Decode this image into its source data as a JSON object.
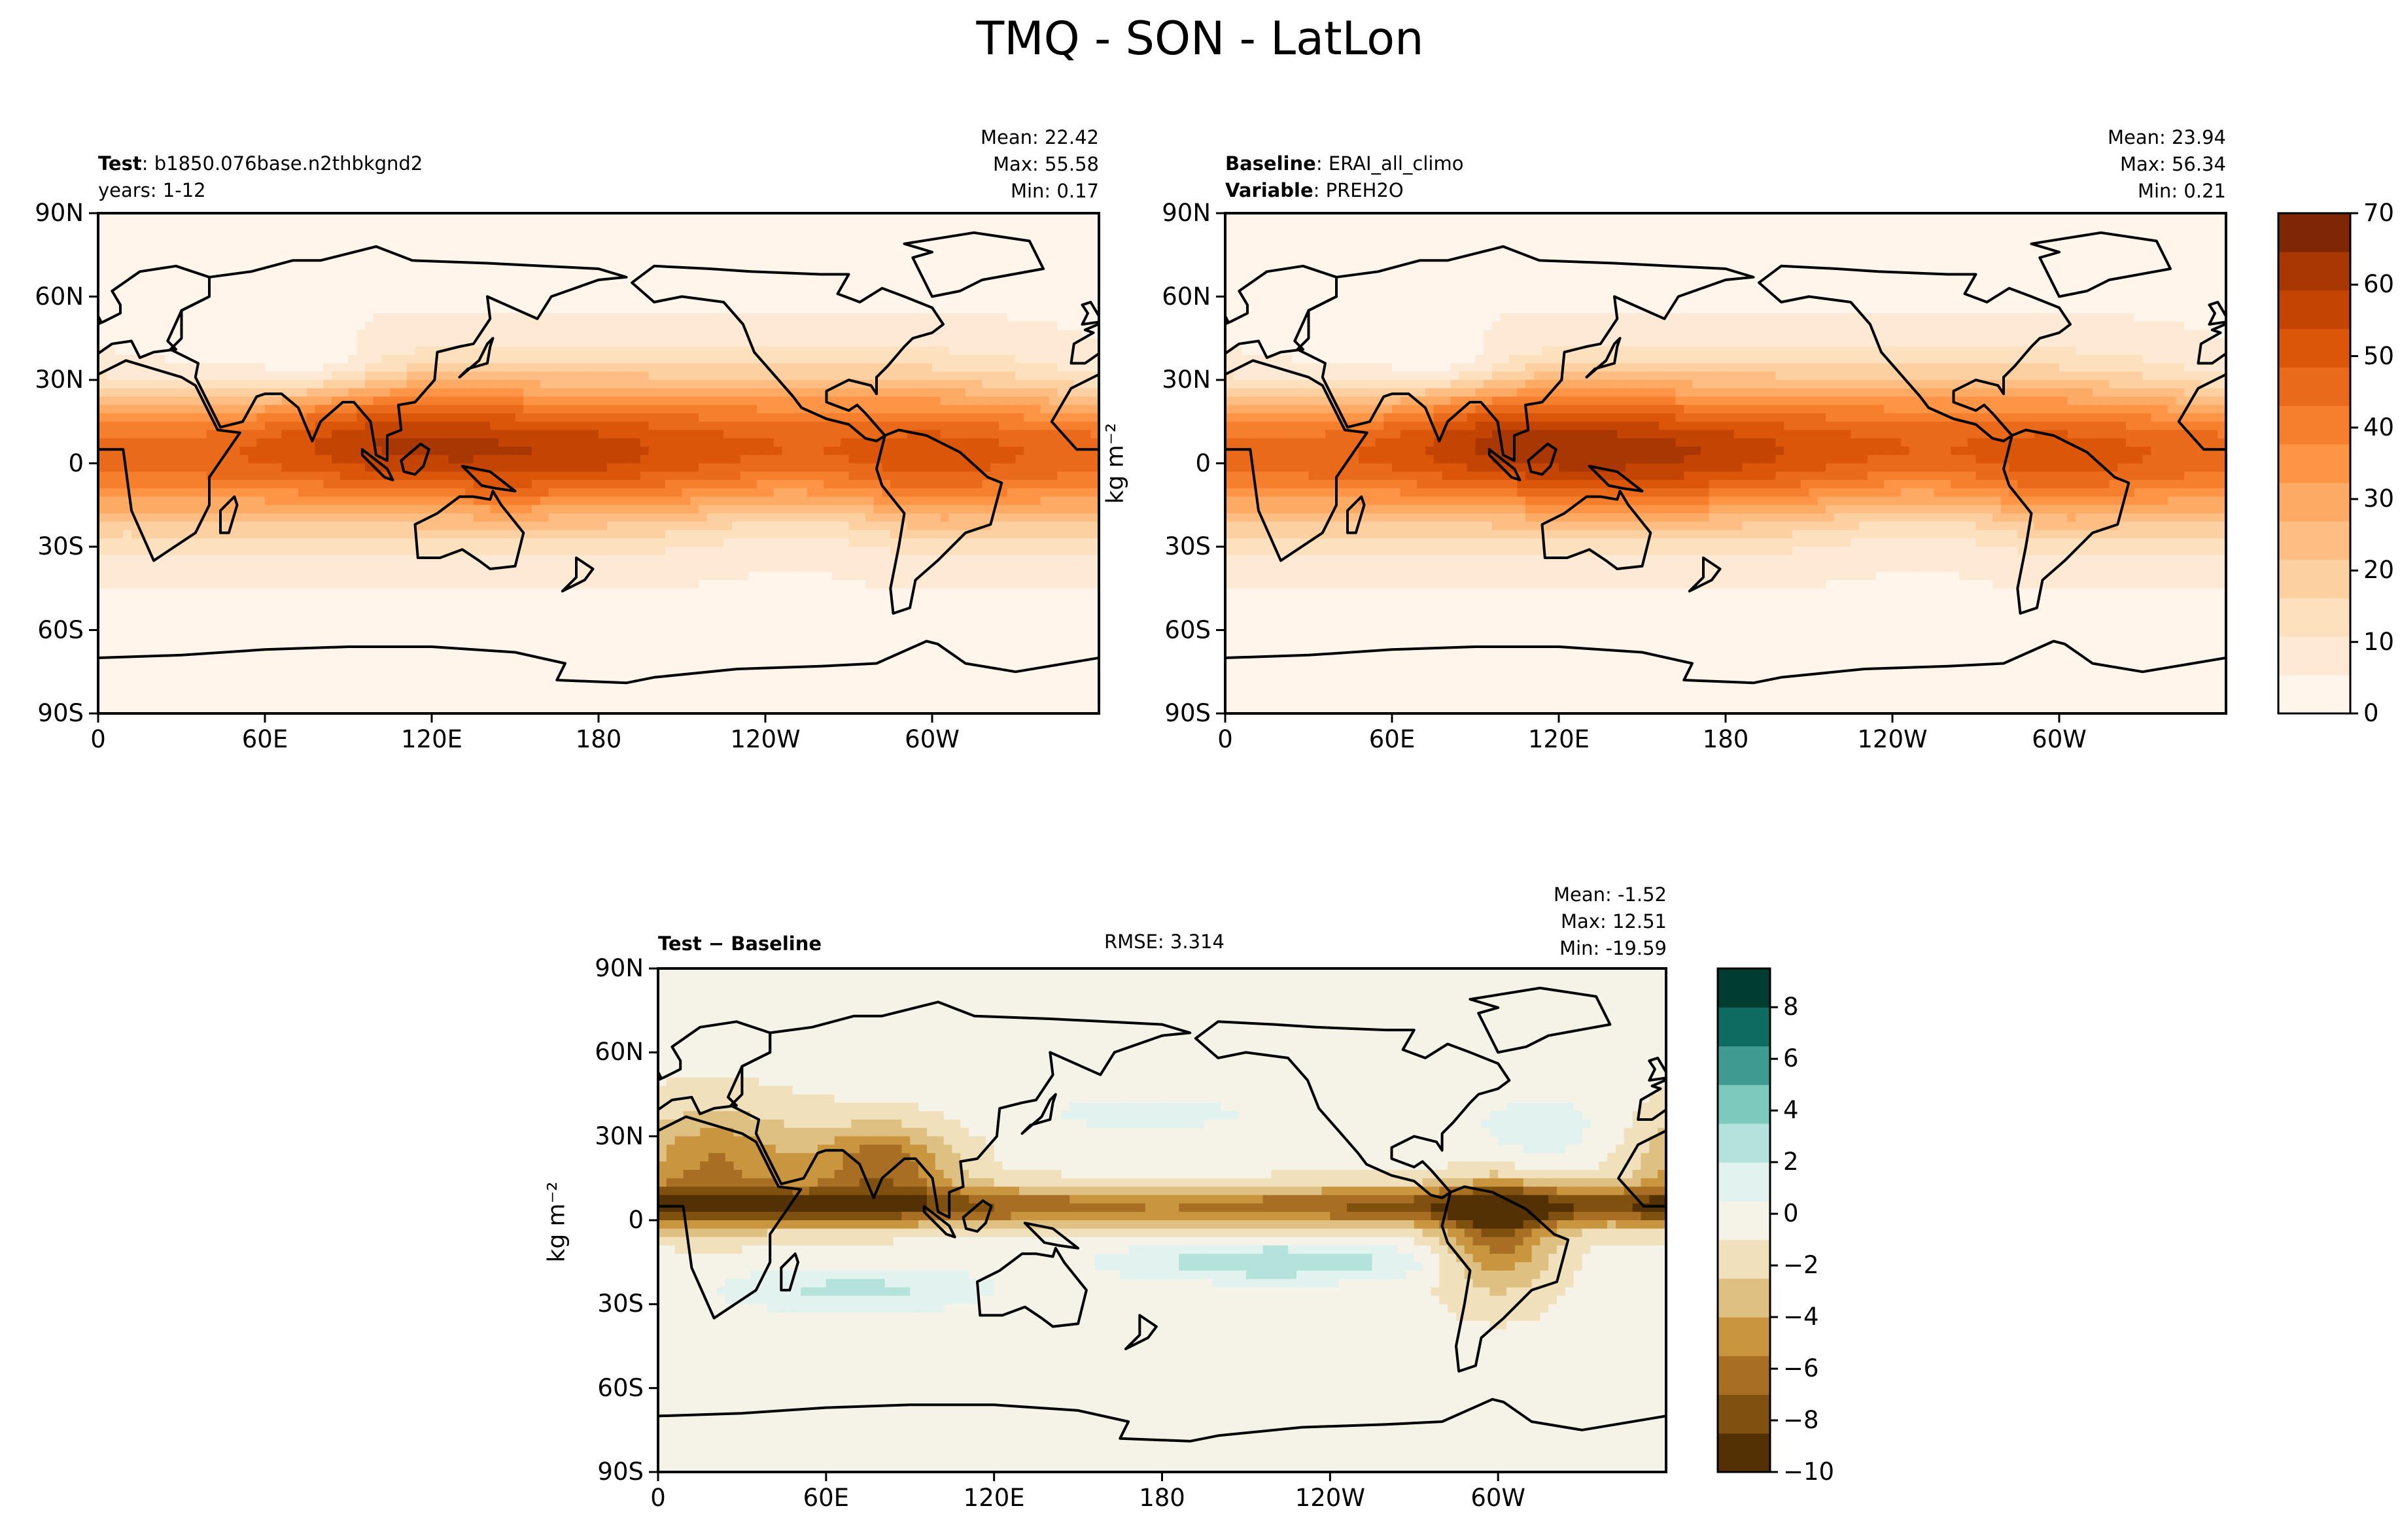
{
  "title": "TMQ - SON - LatLon",
  "colors": {
    "orange_scale": [
      "#fff5eb",
      "#feead4",
      "#fde0be",
      "#fdd0a2",
      "#fdbd83",
      "#fdaa65",
      "#fd9446",
      "#f67f2e",
      "#ea6a1b",
      "#db5609",
      "#c34403",
      "#a83703",
      "#7f2704"
    ],
    "diverging_scale": [
      "#543005",
      "#80500f",
      "#a86f24",
      "#c9963f",
      "#dfc083",
      "#f1e0bc",
      "#f5f2e8",
      "#e1f2ef",
      "#b4e3dc",
      "#7dc9bd",
      "#3f9b91",
      "#0d6b61",
      "#003c30"
    ],
    "land": "#000000"
  },
  "chart_data": [
    {
      "type": "heatmap",
      "name": "test-panel",
      "info_left": [
        {
          "bold": "Test",
          "text": "b1850.076base.n2thbkgnd2"
        },
        {
          "bold": "",
          "text": "years: 1-12"
        }
      ],
      "stats": [
        "Mean: 22.42",
        "Max: 55.58",
        "Min:  0.17"
      ],
      "ylabel": "",
      "yticks": [
        "90N",
        "60N",
        "30N",
        "0",
        "30S",
        "60S",
        "90S"
      ],
      "xticks": [
        "0",
        "60E",
        "120E",
        "180",
        "120W",
        "60W"
      ],
      "mean": 22.42,
      "max": 55.58,
      "min": 0.17
    },
    {
      "type": "heatmap",
      "name": "baseline-panel",
      "info_left": [
        {
          "bold": "Baseline",
          "text": "ERAI_all_climo"
        },
        {
          "bold": "Variable",
          "text": "PREH2O"
        }
      ],
      "stats": [
        "Mean: 23.94",
        "Max: 56.34",
        "Min:  0.21"
      ],
      "ylabel": "kg m⁻²",
      "yticks": [
        "90N",
        "60N",
        "30N",
        "0",
        "30S",
        "60S",
        "90S"
      ],
      "xticks": [
        "0",
        "60E",
        "120E",
        "180",
        "120W",
        "60W"
      ],
      "mean": 23.94,
      "max": 56.34,
      "min": 0.21,
      "colorbar": {
        "ticks": [
          "70",
          "60",
          "50",
          "40",
          "30",
          "20",
          "10",
          "0"
        ],
        "range": [
          0,
          70
        ]
      }
    },
    {
      "type": "heatmap",
      "name": "difference-panel",
      "info_left": [
        {
          "bold": "Test − Baseline",
          "text": ""
        }
      ],
      "center_label": "RMSE: 3.314",
      "stats": [
        "Mean: -1.52",
        "Max: 12.51",
        "Min: -19.59"
      ],
      "ylabel": "kg m⁻²",
      "yticks": [
        "90N",
        "60N",
        "30N",
        "0",
        "30S",
        "60S",
        "90S"
      ],
      "xticks": [
        "0",
        "60E",
        "120E",
        "180",
        "120W",
        "60W"
      ],
      "mean": -1.52,
      "max": 12.51,
      "min": -19.59,
      "colorbar": {
        "ticks": [
          "8",
          "6",
          "4",
          "2",
          "0",
          "−2",
          "−4",
          "−6",
          "−8",
          "−10"
        ],
        "range": [
          -10,
          9.5
        ]
      }
    }
  ]
}
